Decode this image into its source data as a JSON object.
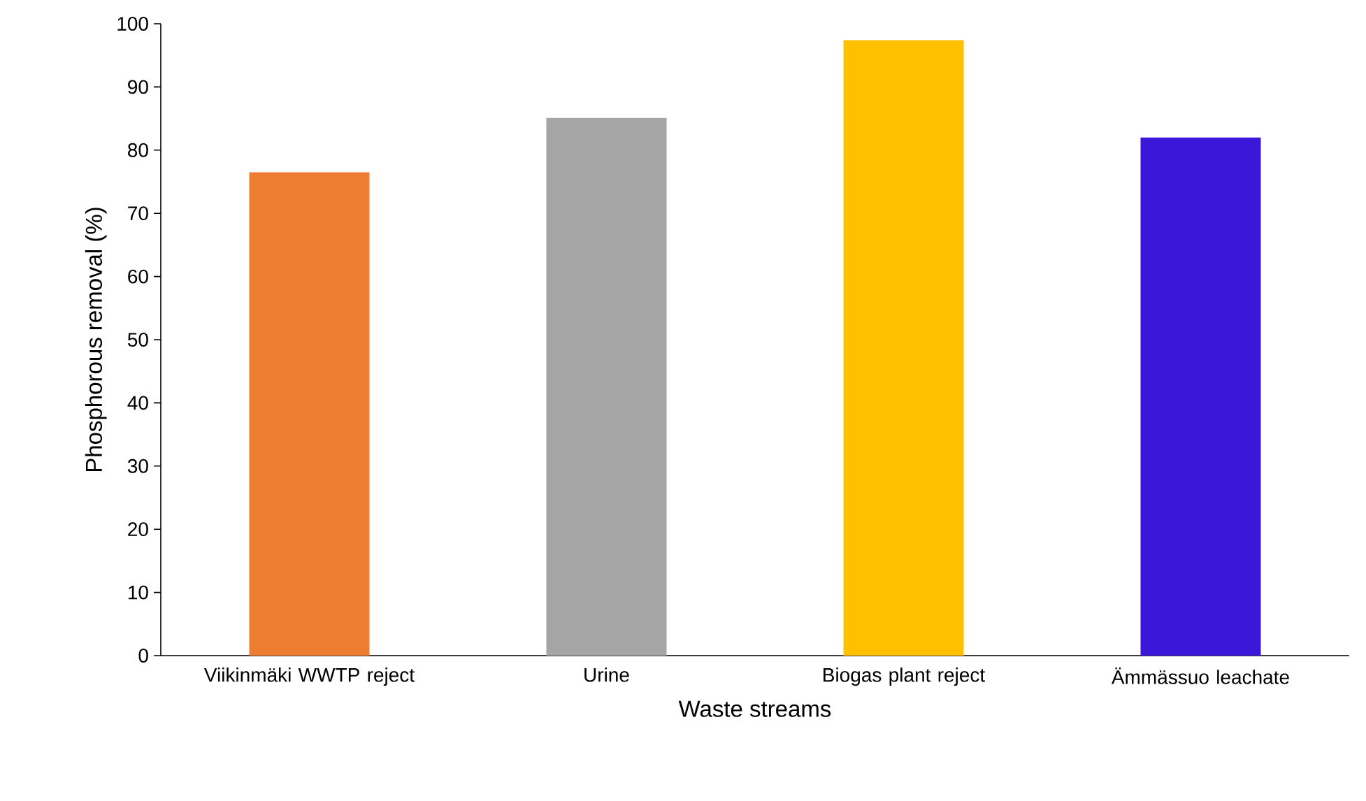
{
  "chart_data": {
    "type": "bar",
    "categories": [
      "Viikinmäki WWTP reject",
      "Urine",
      "Biogas plant reject",
      "Ämmässuo leachate"
    ],
    "values": [
      76.5,
      85.1,
      97.4,
      82.0
    ],
    "colors": [
      "#ed7d31",
      "#a5a5a5",
      "#ffc000",
      "#3a17d9"
    ],
    "xlabel": "Waste streams",
    "ylabel": "Phosphorous removal (%)",
    "ylim": [
      0,
      100
    ],
    "yticks": [
      0,
      10,
      20,
      30,
      40,
      50,
      60,
      70,
      80,
      90,
      100
    ],
    "grid": false
  }
}
